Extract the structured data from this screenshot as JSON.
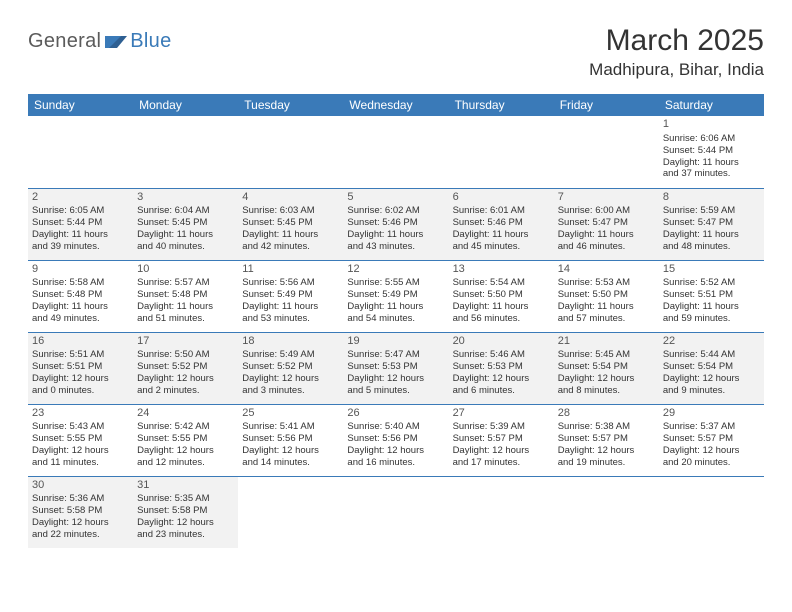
{
  "logo": {
    "part1": "General",
    "part2": "Blue"
  },
  "title": "March 2025",
  "location": "Madhipura, Bihar, India",
  "colors": {
    "header_bg": "#3a7ab8",
    "header_text": "#ffffff",
    "shade_bg": "#f2f2f2",
    "border": "#3a7ab8",
    "text": "#333333",
    "logo_gray": "#5b5b5b",
    "logo_blue": "#3a7ab8"
  },
  "day_headers": [
    "Sunday",
    "Monday",
    "Tuesday",
    "Wednesday",
    "Thursday",
    "Friday",
    "Saturday"
  ],
  "weeks": [
    [
      {
        "day": "",
        "empty": true
      },
      {
        "day": "",
        "empty": true
      },
      {
        "day": "",
        "empty": true
      },
      {
        "day": "",
        "empty": true
      },
      {
        "day": "",
        "empty": true
      },
      {
        "day": "",
        "empty": true
      },
      {
        "day": "1",
        "sunrise": "Sunrise: 6:06 AM",
        "sunset": "Sunset: 5:44 PM",
        "daylight1": "Daylight: 11 hours",
        "daylight2": "and 37 minutes."
      }
    ],
    [
      {
        "day": "2",
        "shade": true,
        "sunrise": "Sunrise: 6:05 AM",
        "sunset": "Sunset: 5:44 PM",
        "daylight1": "Daylight: 11 hours",
        "daylight2": "and 39 minutes."
      },
      {
        "day": "3",
        "shade": true,
        "sunrise": "Sunrise: 6:04 AM",
        "sunset": "Sunset: 5:45 PM",
        "daylight1": "Daylight: 11 hours",
        "daylight2": "and 40 minutes."
      },
      {
        "day": "4",
        "shade": true,
        "sunrise": "Sunrise: 6:03 AM",
        "sunset": "Sunset: 5:45 PM",
        "daylight1": "Daylight: 11 hours",
        "daylight2": "and 42 minutes."
      },
      {
        "day": "5",
        "shade": true,
        "sunrise": "Sunrise: 6:02 AM",
        "sunset": "Sunset: 5:46 PM",
        "daylight1": "Daylight: 11 hours",
        "daylight2": "and 43 minutes."
      },
      {
        "day": "6",
        "shade": true,
        "sunrise": "Sunrise: 6:01 AM",
        "sunset": "Sunset: 5:46 PM",
        "daylight1": "Daylight: 11 hours",
        "daylight2": "and 45 minutes."
      },
      {
        "day": "7",
        "shade": true,
        "sunrise": "Sunrise: 6:00 AM",
        "sunset": "Sunset: 5:47 PM",
        "daylight1": "Daylight: 11 hours",
        "daylight2": "and 46 minutes."
      },
      {
        "day": "8",
        "shade": true,
        "sunrise": "Sunrise: 5:59 AM",
        "sunset": "Sunset: 5:47 PM",
        "daylight1": "Daylight: 11 hours",
        "daylight2": "and 48 minutes."
      }
    ],
    [
      {
        "day": "9",
        "sunrise": "Sunrise: 5:58 AM",
        "sunset": "Sunset: 5:48 PM",
        "daylight1": "Daylight: 11 hours",
        "daylight2": "and 49 minutes."
      },
      {
        "day": "10",
        "sunrise": "Sunrise: 5:57 AM",
        "sunset": "Sunset: 5:48 PM",
        "daylight1": "Daylight: 11 hours",
        "daylight2": "and 51 minutes."
      },
      {
        "day": "11",
        "sunrise": "Sunrise: 5:56 AM",
        "sunset": "Sunset: 5:49 PM",
        "daylight1": "Daylight: 11 hours",
        "daylight2": "and 53 minutes."
      },
      {
        "day": "12",
        "sunrise": "Sunrise: 5:55 AM",
        "sunset": "Sunset: 5:49 PM",
        "daylight1": "Daylight: 11 hours",
        "daylight2": "and 54 minutes."
      },
      {
        "day": "13",
        "sunrise": "Sunrise: 5:54 AM",
        "sunset": "Sunset: 5:50 PM",
        "daylight1": "Daylight: 11 hours",
        "daylight2": "and 56 minutes."
      },
      {
        "day": "14",
        "sunrise": "Sunrise: 5:53 AM",
        "sunset": "Sunset: 5:50 PM",
        "daylight1": "Daylight: 11 hours",
        "daylight2": "and 57 minutes."
      },
      {
        "day": "15",
        "sunrise": "Sunrise: 5:52 AM",
        "sunset": "Sunset: 5:51 PM",
        "daylight1": "Daylight: 11 hours",
        "daylight2": "and 59 minutes."
      }
    ],
    [
      {
        "day": "16",
        "shade": true,
        "sunrise": "Sunrise: 5:51 AM",
        "sunset": "Sunset: 5:51 PM",
        "daylight1": "Daylight: 12 hours",
        "daylight2": "and 0 minutes."
      },
      {
        "day": "17",
        "shade": true,
        "sunrise": "Sunrise: 5:50 AM",
        "sunset": "Sunset: 5:52 PM",
        "daylight1": "Daylight: 12 hours",
        "daylight2": "and 2 minutes."
      },
      {
        "day": "18",
        "shade": true,
        "sunrise": "Sunrise: 5:49 AM",
        "sunset": "Sunset: 5:52 PM",
        "daylight1": "Daylight: 12 hours",
        "daylight2": "and 3 minutes."
      },
      {
        "day": "19",
        "shade": true,
        "sunrise": "Sunrise: 5:47 AM",
        "sunset": "Sunset: 5:53 PM",
        "daylight1": "Daylight: 12 hours",
        "daylight2": "and 5 minutes."
      },
      {
        "day": "20",
        "shade": true,
        "sunrise": "Sunrise: 5:46 AM",
        "sunset": "Sunset: 5:53 PM",
        "daylight1": "Daylight: 12 hours",
        "daylight2": "and 6 minutes."
      },
      {
        "day": "21",
        "shade": true,
        "sunrise": "Sunrise: 5:45 AM",
        "sunset": "Sunset: 5:54 PM",
        "daylight1": "Daylight: 12 hours",
        "daylight2": "and 8 minutes."
      },
      {
        "day": "22",
        "shade": true,
        "sunrise": "Sunrise: 5:44 AM",
        "sunset": "Sunset: 5:54 PM",
        "daylight1": "Daylight: 12 hours",
        "daylight2": "and 9 minutes."
      }
    ],
    [
      {
        "day": "23",
        "sunrise": "Sunrise: 5:43 AM",
        "sunset": "Sunset: 5:55 PM",
        "daylight1": "Daylight: 12 hours",
        "daylight2": "and 11 minutes."
      },
      {
        "day": "24",
        "sunrise": "Sunrise: 5:42 AM",
        "sunset": "Sunset: 5:55 PM",
        "daylight1": "Daylight: 12 hours",
        "daylight2": "and 12 minutes."
      },
      {
        "day": "25",
        "sunrise": "Sunrise: 5:41 AM",
        "sunset": "Sunset: 5:56 PM",
        "daylight1": "Daylight: 12 hours",
        "daylight2": "and 14 minutes."
      },
      {
        "day": "26",
        "sunrise": "Sunrise: 5:40 AM",
        "sunset": "Sunset: 5:56 PM",
        "daylight1": "Daylight: 12 hours",
        "daylight2": "and 16 minutes."
      },
      {
        "day": "27",
        "sunrise": "Sunrise: 5:39 AM",
        "sunset": "Sunset: 5:57 PM",
        "daylight1": "Daylight: 12 hours",
        "daylight2": "and 17 minutes."
      },
      {
        "day": "28",
        "sunrise": "Sunrise: 5:38 AM",
        "sunset": "Sunset: 5:57 PM",
        "daylight1": "Daylight: 12 hours",
        "daylight2": "and 19 minutes."
      },
      {
        "day": "29",
        "sunrise": "Sunrise: 5:37 AM",
        "sunset": "Sunset: 5:57 PM",
        "daylight1": "Daylight: 12 hours",
        "daylight2": "and 20 minutes."
      }
    ],
    [
      {
        "day": "30",
        "shade": true,
        "sunrise": "Sunrise: 5:36 AM",
        "sunset": "Sunset: 5:58 PM",
        "daylight1": "Daylight: 12 hours",
        "daylight2": "and 22 minutes."
      },
      {
        "day": "31",
        "shade": true,
        "sunrise": "Sunrise: 5:35 AM",
        "sunset": "Sunset: 5:58 PM",
        "daylight1": "Daylight: 12 hours",
        "daylight2": "and 23 minutes."
      },
      {
        "day": "",
        "empty": true
      },
      {
        "day": "",
        "empty": true
      },
      {
        "day": "",
        "empty": true
      },
      {
        "day": "",
        "empty": true
      },
      {
        "day": "",
        "empty": true
      }
    ]
  ]
}
